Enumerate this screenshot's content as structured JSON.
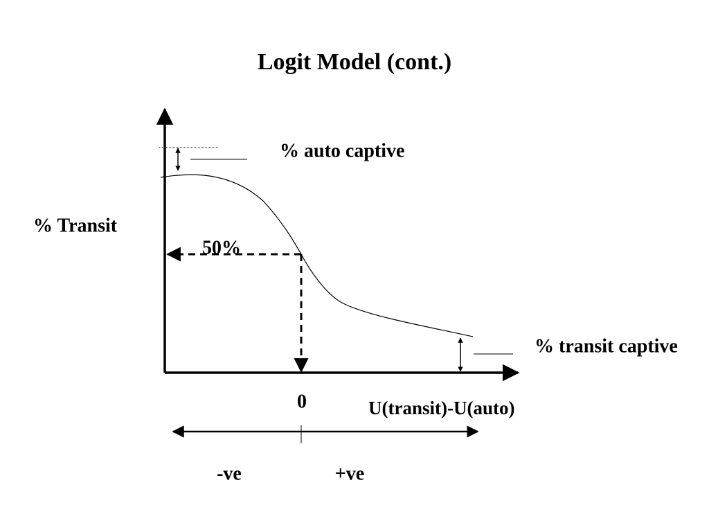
{
  "title": "Logit Model (cont.)",
  "labels": {
    "auto_captive": "% auto captive",
    "y_axis": "% Transit",
    "midpoint": "50%",
    "transit_captive": "% transit captive",
    "origin": "0",
    "x_axis": "U(transit)-U(auto)",
    "negative": "-ve",
    "positive": "+ve"
  }
}
